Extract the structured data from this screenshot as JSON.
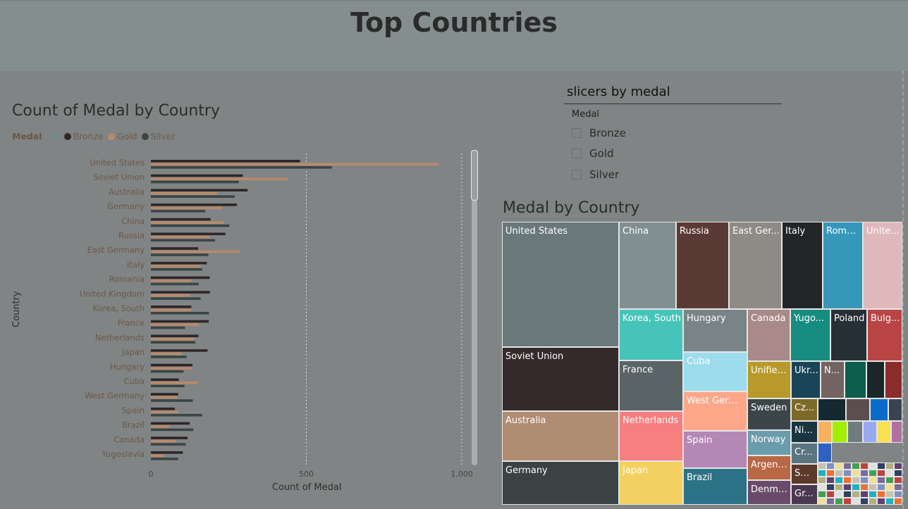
{
  "header": {
    "title": "Top Countries"
  },
  "chart": {
    "title": "Count of Medal by Country",
    "legend_title": "Medal",
    "legend": [
      {
        "label": "",
        "color": "#6f8a8a"
      },
      {
        "label": "Bronze",
        "color": "#2e2628"
      },
      {
        "label": "Gold",
        "color": "#b88a6c"
      },
      {
        "label": "Silver",
        "color": "#3b4546"
      }
    ],
    "y_axis_title": "Country",
    "x_axis_title": "Count of Medal"
  },
  "chart_data": {
    "type": "bar",
    "orientation": "horizontal",
    "title": "Count of Medal by Country",
    "xlabel": "Count of Medal",
    "ylabel": "Country",
    "xlim": [
      0,
      1000
    ],
    "xticks": [
      "0",
      "500",
      "1,000"
    ],
    "grid": true,
    "legend_position": "top-left",
    "categories": [
      "United States",
      "Soviet Union",
      "Australia",
      "Germany",
      "China",
      "Russia",
      "East Germany",
      "Italy",
      "Romania",
      "United Kingdom",
      "Korea, South",
      "France",
      "Netherlands",
      "Japan",
      "Hungary",
      "Cuba",
      "West Germany",
      "Spain",
      "Brazil",
      "Canada",
      "Yugoslavia"
    ],
    "series": [
      {
        "name": "Bronze",
        "color": "#2e2628",
        "values": [
          480,
          296,
          311,
          277,
          192,
          240,
          152,
          180,
          189,
          190,
          130,
          186,
          153,
          182,
          134,
          90,
          88,
          77,
          125,
          118,
          103
        ]
      },
      {
        "name": "Gold",
        "color": "#b88a6c",
        "values": [
          925,
          440,
          215,
          230,
          235,
          190,
          285,
          160,
          130,
          125,
          130,
          155,
          140,
          100,
          130,
          152,
          85,
          90,
          60,
          80,
          40
        ]
      },
      {
        "name": "Silver",
        "color": "#3b4546",
        "values": [
          582,
          283,
          270,
          175,
          253,
          206,
          185,
          165,
          154,
          160,
          187,
          110,
          143,
          115,
          105,
          108,
          135,
          165,
          137,
          112,
          88
        ]
      }
    ]
  },
  "slicer": {
    "title": "slicers by medal",
    "label": "Medal",
    "options": [
      "Bronze",
      "Gold",
      "Silver"
    ]
  },
  "treemap": {
    "title": "Medal by Country",
    "cells": [
      {
        "label": "United States",
        "color": "#6a787b"
      },
      {
        "label": "Soviet Union",
        "color": "#342a2b"
      },
      {
        "label": "Australia",
        "color": "#b08c72"
      },
      {
        "label": "Germany",
        "color": "#3a4244"
      },
      {
        "label": "China",
        "color": "#828f91"
      },
      {
        "label": "Russia",
        "color": "#5a3a34"
      },
      {
        "label": "East Ger...",
        "color": "#8e8a86"
      },
      {
        "label": "Italy",
        "color": "#232628"
      },
      {
        "label": "Roma...",
        "color": "#3598ba"
      },
      {
        "label": "Unite...",
        "color": "#dfb8bc"
      },
      {
        "label": "Korea, South",
        "color": "#46c4ba"
      },
      {
        "label": "Hungary",
        "color": "#7a8486"
      },
      {
        "label": "Canada",
        "color": "#a88a88"
      },
      {
        "label": "Yugo...",
        "color": "#168c80"
      },
      {
        "label": "Poland",
        "color": "#263034"
      },
      {
        "label": "Bulg...",
        "color": "#b84444"
      },
      {
        "label": "France",
        "color": "#5a6466"
      },
      {
        "label": "Cuba",
        "color": "#9cdcec"
      },
      {
        "label": "Unified...",
        "color": "#b89a2a"
      },
      {
        "label": "Ukr...",
        "color": "#1a4458"
      },
      {
        "label": "N...",
        "color": "#736462"
      },
      {
        "label": "",
        "color": "#0c5e4e"
      },
      {
        "label": "",
        "color": "#1a2628"
      },
      {
        "label": "",
        "color": "#8a2c2c"
      },
      {
        "label": "Netherlands",
        "color": "#f77f7f"
      },
      {
        "label": "West Germ...",
        "color": "#fca78a"
      },
      {
        "label": "Sweden",
        "color": "#3c4648"
      },
      {
        "label": "Cz...",
        "color": "#7d6a28"
      },
      {
        "label": "Spain",
        "color": "#b488b4"
      },
      {
        "label": "Norway",
        "color": "#6a9cac"
      },
      {
        "label": "Ni...",
        "color": "#1a3440"
      },
      {
        "label": "Japan",
        "color": "#f3d060"
      },
      {
        "label": "Brazil",
        "color": "#2c7286"
      },
      {
        "label": "Argent...",
        "color": "#b86844"
      },
      {
        "label": "Cr...",
        "color": "#5a7480"
      },
      {
        "label": "Denma...",
        "color": "#6a4a6a"
      },
      {
        "label": "Sw...",
        "color": "#5a3a2a"
      },
      {
        "label": "Gr...",
        "color": "#4a3850"
      },
      {
        "label": "",
        "color": "#142a30"
      },
      {
        "label": "",
        "color": "#5c4e50"
      },
      {
        "label": "",
        "color": "#0a6cc8"
      },
      {
        "label": "",
        "color": "#3a4450"
      },
      {
        "label": "",
        "color": "#f8b060"
      },
      {
        "label": "",
        "color": "#a0f000"
      },
      {
        "label": "",
        "color": "#707c80"
      },
      {
        "label": "",
        "color": "#9aaaf0"
      },
      {
        "label": "",
        "color": "#f8e050"
      },
      {
        "label": "",
        "color": "#b070a0"
      },
      {
        "label": "",
        "color": "#3060c0"
      }
    ]
  }
}
